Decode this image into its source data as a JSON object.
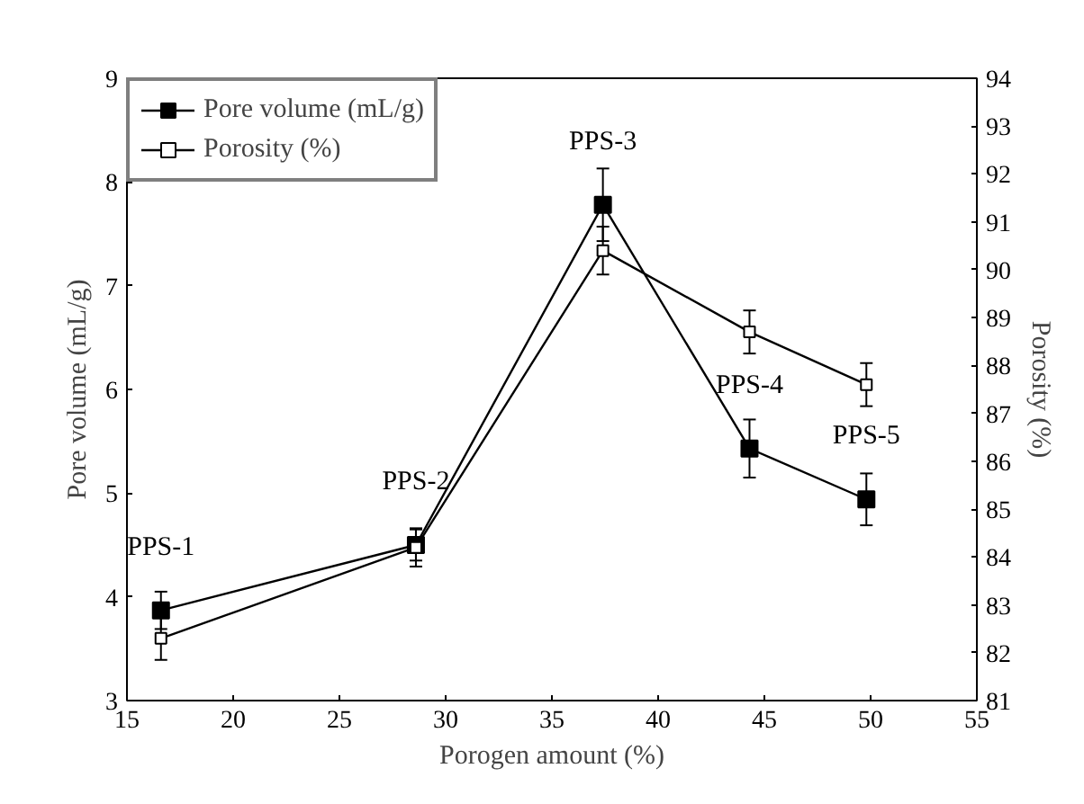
{
  "chart_data": {
    "type": "line",
    "xlabel": "Porogen amount (%)",
    "ylabel": "Pore volume (mL/g)",
    "y2label": "Porosity (%)",
    "xlim": [
      15,
      55
    ],
    "xticks": [
      15,
      20,
      25,
      30,
      35,
      40,
      45,
      50,
      55
    ],
    "ylim": [
      3,
      9
    ],
    "yticks": [
      3,
      4,
      5,
      6,
      7,
      8,
      9
    ],
    "y2lim": [
      81,
      94
    ],
    "y2ticks": [
      81,
      82,
      83,
      84,
      85,
      86,
      87,
      88,
      89,
      90,
      91,
      92,
      93,
      94
    ],
    "series": [
      {
        "name": "Pore volume (mL/g)",
        "color": "#000000",
        "marker": "square",
        "x": [
          16.6,
          28.6,
          37.4,
          44.3,
          49.8
        ],
        "values": [
          3.87,
          4.5,
          7.78,
          5.43,
          4.94
        ],
        "errors": [
          0.18,
          0.15,
          0.35,
          0.28,
          0.25
        ]
      },
      {
        "name": "Porosity (%)",
        "color": "#000000",
        "marker": "square_open",
        "axis": "y2",
        "x": [
          16.6,
          28.6,
          37.4,
          44.3,
          49.8
        ],
        "values": [
          82.3,
          84.2,
          90.4,
          88.7,
          87.6
        ],
        "errors": [
          0.45,
          0.4,
          0.5,
          0.45,
          0.45
        ]
      }
    ],
    "annotations": [
      {
        "text": "PPS-1",
        "x": 16.6,
        "y": 3.87
      },
      {
        "text": "PPS-2",
        "x": 28.6,
        "y": 4.5
      },
      {
        "text": "PPS-3",
        "x": 37.4,
        "y": 7.78
      },
      {
        "text": "PPS-4",
        "x": 44.3,
        "y": 5.43
      },
      {
        "text": "PPS-5",
        "x": 49.8,
        "y": 4.94
      }
    ],
    "line_style": "solid",
    "grid": false,
    "legend": "top left"
  }
}
